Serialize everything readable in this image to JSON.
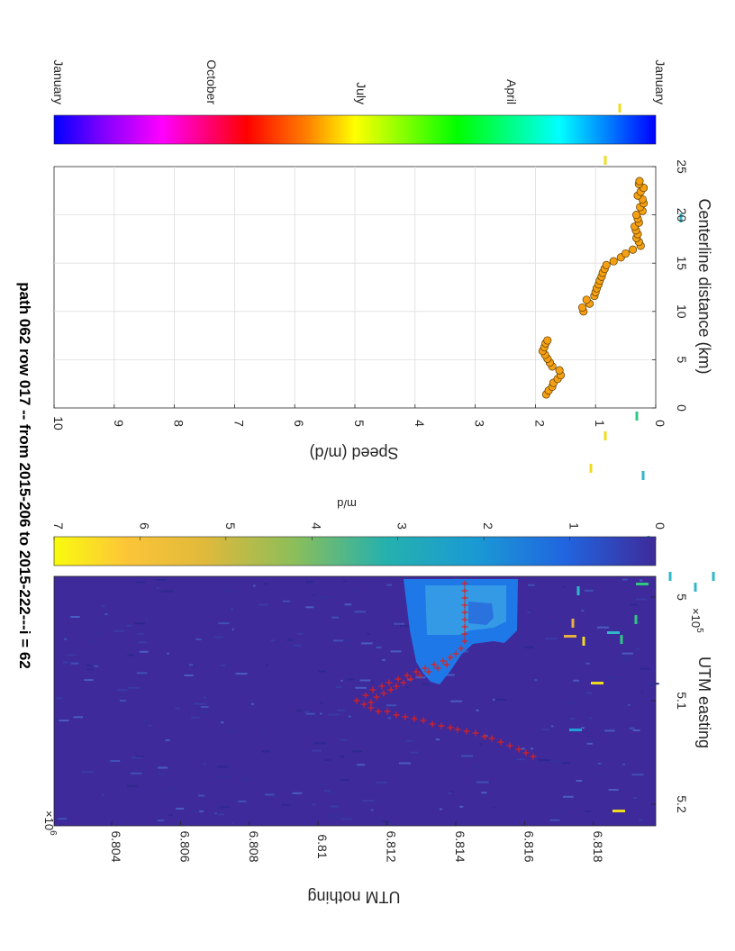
{
  "title": "path 062 row 017  -- from 2015-206 to 2015-222---i = 62",
  "colors": {
    "map_background": "#3e2a9a",
    "glacier_fill": "#1f78e8",
    "glacier_fill_light": "#3da6e6",
    "centerline_marker": "#e0201b",
    "speed_marker_fill": "#f5a013",
    "speed_marker_edge": "#5a3a00",
    "grid": "#dddddd"
  },
  "chart_data": [
    {
      "type": "heatmap",
      "xlabel": "UTM easting",
      "ylabel": "UTM nothing",
      "x_multiplier": "×10^5",
      "y_multiplier": "×10^6",
      "x_ticks": [
        "5",
        "5.1",
        "5.2"
      ],
      "y_ticks": [
        "6.804",
        "6.806",
        "6.808",
        "6.81",
        "6.812",
        "6.814",
        "6.816",
        "6.818"
      ],
      "centerline_marker": "+",
      "colorbar": {
        "label": "m/d",
        "ticks": [
          "0",
          "1",
          "2",
          "3",
          "4",
          "5",
          "6",
          "7"
        ],
        "range": [
          0,
          7
        ]
      }
    },
    {
      "type": "scatter",
      "xlabel": "Centerline distance (km)",
      "ylabel": "Speed (m/d)",
      "xlim": [
        0,
        25
      ],
      "ylim": [
        0,
        10
      ],
      "x_ticks": [
        "0",
        "5",
        "10",
        "15",
        "20",
        "25"
      ],
      "y_ticks": [
        "0",
        "1",
        "2",
        "3",
        "4",
        "5",
        "6",
        "7",
        "8",
        "9",
        "10"
      ],
      "grid": true,
      "x": [
        1.4,
        1.8,
        2.2,
        2.6,
        3.0,
        3.4,
        3.9,
        4.3,
        4.7,
        5.1,
        5.5,
        5.9,
        6.3,
        6.7,
        7.0,
        10.0,
        10.4,
        10.8,
        11.2,
        11.6,
        12.0,
        12.4,
        12.8,
        13.2,
        13.6,
        14.0,
        14.4,
        14.8,
        15.2,
        15.6,
        16.0,
        16.4,
        16.8,
        17.2,
        17.6,
        18.0,
        18.4,
        18.8,
        19.2,
        19.6,
        20.0,
        20.4,
        20.8,
        21.2,
        21.6,
        22.0,
        22.4,
        22.8,
        23.2,
        23.5
      ],
      "y": [
        1.82,
        1.78,
        1.72,
        1.7,
        1.63,
        1.58,
        1.6,
        1.72,
        1.76,
        1.8,
        1.84,
        1.88,
        1.85,
        1.83,
        1.8,
        1.2,
        1.22,
        1.1,
        1.15,
        1.02,
        1.0,
        0.98,
        0.95,
        0.93,
        0.9,
        0.88,
        0.85,
        0.82,
        0.7,
        0.58,
        0.5,
        0.38,
        0.25,
        0.28,
        0.32,
        0.3,
        0.33,
        0.35,
        0.28,
        0.3,
        0.32,
        0.22,
        0.26,
        0.2,
        0.22,
        0.3,
        0.25,
        0.2,
        0.28,
        0.27
      ],
      "colorbar": {
        "ticks": [
          "January",
          "April",
          "July",
          "October",
          "January"
        ]
      }
    }
  ]
}
